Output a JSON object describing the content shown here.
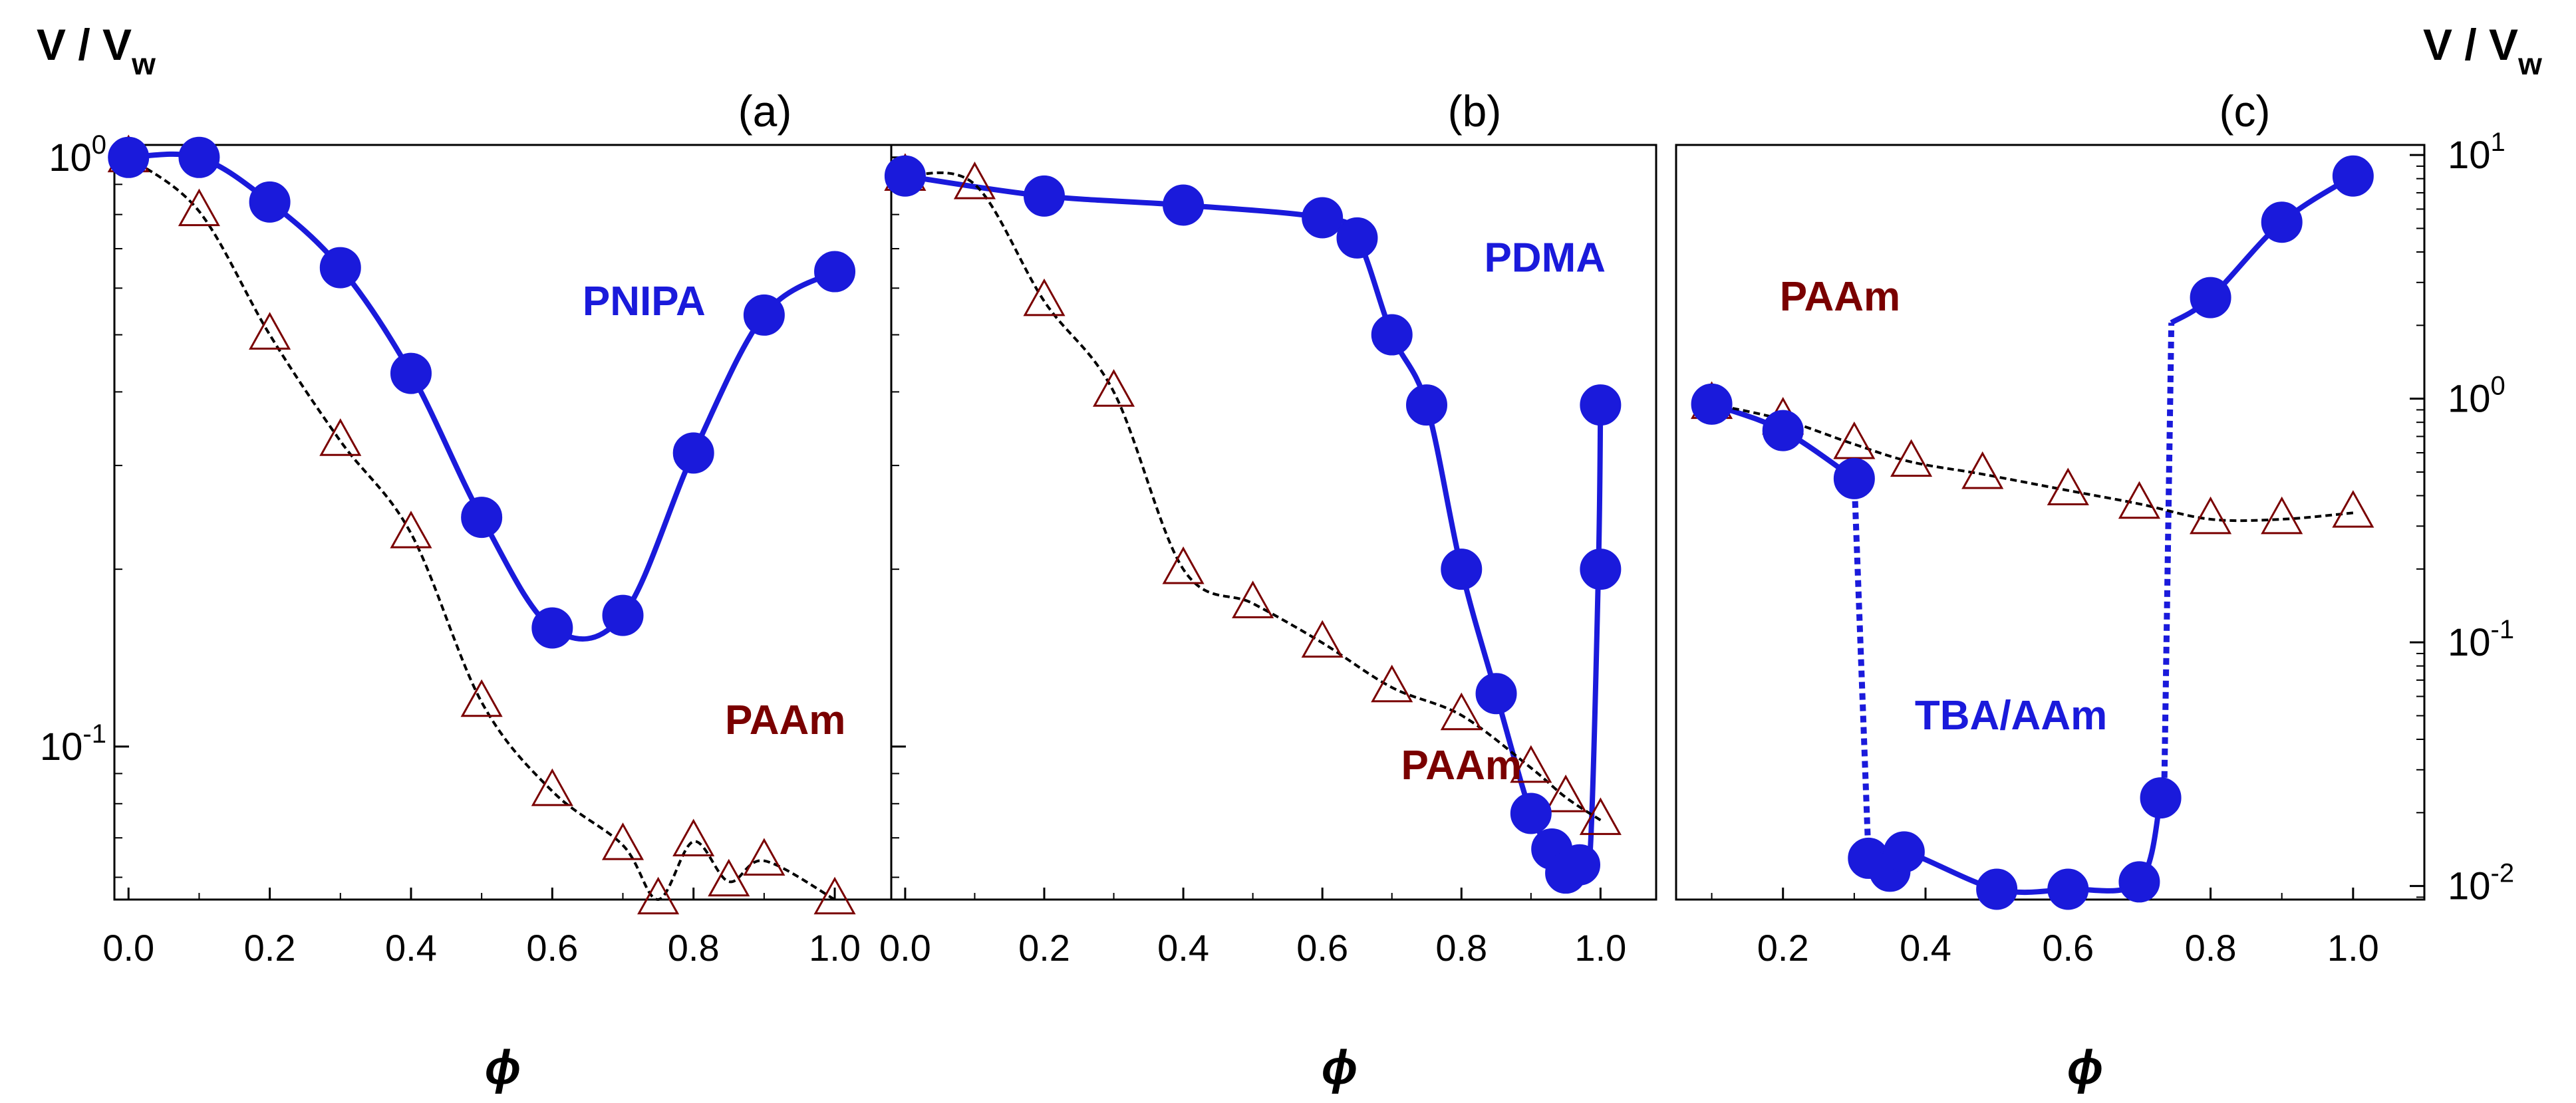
{
  "figure": {
    "y_axis_label_left": {
      "main": "V / V",
      "sub": "w"
    },
    "y_axis_label_right": {
      "main": "V / V",
      "sub": "w"
    }
  },
  "colors": {
    "blue": "#1a1adb",
    "dark_red": "#7a0000",
    "black": "#000000"
  },
  "chart_data": [
    {
      "type": "scatter",
      "panel": "(a)",
      "xlabel": "ϕ",
      "ylabel": "V / Vw",
      "xlim": [
        -0.02,
        1.08
      ],
      "ylim": [
        0.055,
        1.05
      ],
      "yscale": "log",
      "xticks": [
        "0.0",
        "0.2",
        "0.4",
        "0.6",
        "0.8",
        "1.0"
      ],
      "yticks": [
        {
          "value": 1,
          "base": "10",
          "exp": "0"
        },
        {
          "value": 0.1,
          "base": "10",
          "exp": "-1"
        }
      ],
      "labels": [
        {
          "text": "PNIPA",
          "x": 0.73,
          "y": 0.54,
          "color": "blue"
        },
        {
          "text": "PAAm",
          "x": 0.93,
          "y": 0.105,
          "color": "dark_red"
        }
      ],
      "series": [
        {
          "name": "PNIPA",
          "marker": "circle",
          "color": "blue",
          "x": [
            0.0,
            0.1,
            0.2,
            0.3,
            0.4,
            0.5,
            0.6,
            0.7,
            0.8,
            0.9,
            1.0
          ],
          "y": [
            1.0,
            1.0,
            0.84,
            0.65,
            0.43,
            0.245,
            0.159,
            0.167,
            0.315,
            0.54,
            0.64
          ]
        },
        {
          "name": "PAAm",
          "marker": "triangle",
          "color": "dark_red",
          "x": [
            0.0,
            0.1,
            0.2,
            0.3,
            0.4,
            0.5,
            0.6,
            0.7,
            0.75,
            0.8,
            0.85,
            0.9,
            1.0
          ],
          "y": [
            1.0,
            0.81,
            0.5,
            0.33,
            0.23,
            0.119,
            0.084,
            0.068,
            0.055,
            0.069,
            0.059,
            0.064,
            0.055
          ]
        }
      ]
    },
    {
      "type": "scatter",
      "panel": "(b)",
      "xlabel": "ϕ",
      "ylim": [
        0.055,
        1.05
      ],
      "xlim": [
        -0.02,
        1.08
      ],
      "yscale": "log",
      "xticks": [
        "0.0",
        "0.2",
        "0.4",
        "0.6",
        "0.8",
        "1.0"
      ],
      "labels": [
        {
          "text": "PDMA",
          "x": 0.92,
          "y": 0.64,
          "color": "blue"
        },
        {
          "text": "PAAm",
          "x": 0.8,
          "y": 0.088,
          "color": "dark_red"
        }
      ],
      "series": [
        {
          "name": "PDMA",
          "marker": "circle",
          "color": "blue",
          "x": [
            0.0,
            0.2,
            0.4,
            0.6,
            0.65,
            0.7,
            0.75,
            0.8,
            0.85,
            0.9,
            0.93,
            0.95,
            0.97,
            1.0,
            1.0
          ],
          "y": [
            0.93,
            0.86,
            0.83,
            0.79,
            0.73,
            0.5,
            0.38,
            0.2,
            0.123,
            0.077,
            0.067,
            0.061,
            0.063,
            0.2,
            0.38
          ]
        },
        {
          "name": "PAAm",
          "marker": "triangle",
          "color": "dark_red",
          "x": [
            0.0,
            0.1,
            0.2,
            0.3,
            0.4,
            0.5,
            0.6,
            0.7,
            0.8,
            0.9,
            0.95,
            1.0
          ],
          "y": [
            0.93,
            0.9,
            0.57,
            0.4,
            0.2,
            0.175,
            0.15,
            0.126,
            0.113,
            0.092,
            0.082,
            0.075
          ]
        }
      ]
    },
    {
      "type": "scatter",
      "panel": "(c)",
      "xlabel": "ϕ",
      "ylabel": "V / Vw",
      "xlim": [
        0.05,
        1.1
      ],
      "ylim": [
        0.0088,
        11
      ],
      "yscale": "log",
      "xticks": [
        "0.2",
        "0.4",
        "0.6",
        "0.8",
        "1.0"
      ],
      "yticks": [
        {
          "value": 10,
          "base": "10",
          "exp": "1"
        },
        {
          "value": 1,
          "base": "10",
          "exp": "0"
        },
        {
          "value": 0.1,
          "base": "10",
          "exp": "-1"
        },
        {
          "value": 0.01,
          "base": "10",
          "exp": "-2"
        }
      ],
      "labels": [
        {
          "text": "PAAm",
          "x": 0.28,
          "y": 2.3,
          "color": "dark_red"
        },
        {
          "text": "TBA/AAm",
          "x": 0.52,
          "y": 0.044,
          "color": "blue"
        }
      ],
      "series": [
        {
          "name": "TBA/AAm",
          "marker": "circle",
          "color": "blue",
          "x": [
            0.1,
            0.2,
            0.3,
            0.32,
            0.35,
            0.37,
            0.5,
            0.6,
            0.7,
            0.73,
            0.8,
            0.9,
            1.0
          ],
          "y": [
            0.95,
            0.74,
            0.47,
            0.013,
            0.0115,
            0.0138,
            0.0097,
            0.0097,
            0.0104,
            0.023,
            2.6,
            5.3,
            8.2
          ]
        },
        {
          "name": "PAAm",
          "marker": "triangle",
          "color": "dark_red",
          "x": [
            0.1,
            0.2,
            0.3,
            0.38,
            0.48,
            0.6,
            0.7,
            0.8,
            0.9,
            1.0
          ],
          "y": [
            0.95,
            0.82,
            0.65,
            0.55,
            0.49,
            0.42,
            0.37,
            0.32,
            0.32,
            0.34
          ]
        }
      ]
    }
  ]
}
